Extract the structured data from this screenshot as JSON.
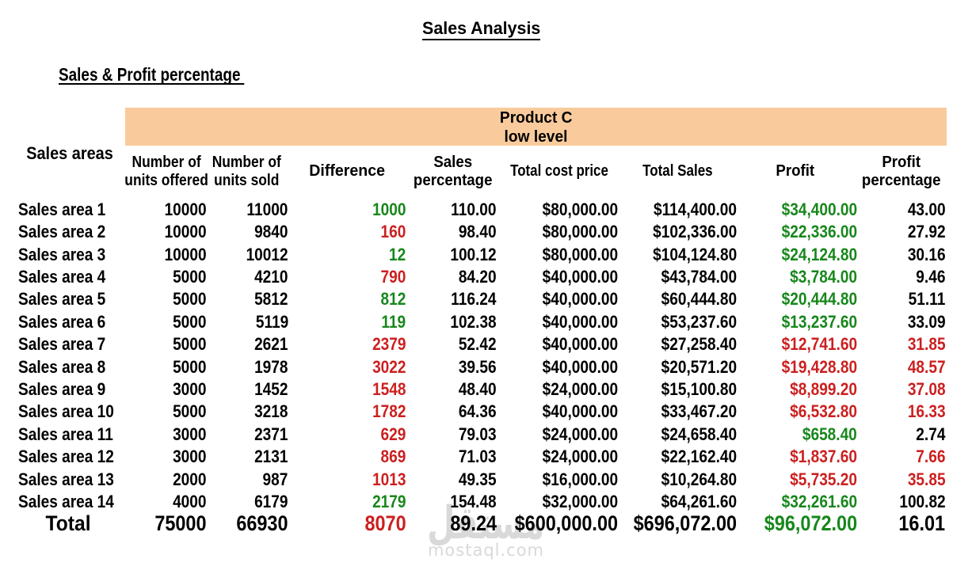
{
  "page": {
    "title": "Sales Analysis",
    "subtitle": "Sales & Profit percentage"
  },
  "band": {
    "line1": "Product C",
    "line2": "low level"
  },
  "area_header": "Sales areas",
  "column_headers": [
    {
      "lines": [
        "Number of",
        "units offered"
      ]
    },
    {
      "lines": [
        "Number of",
        "units sold"
      ]
    },
    {
      "lines": [
        "Difference"
      ]
    },
    {
      "lines": [
        "Sales",
        "percentage"
      ]
    },
    {
      "lines": [
        "Total cost price"
      ]
    },
    {
      "lines": [
        "Total Sales"
      ]
    },
    {
      "lines": [
        "Profit"
      ]
    },
    {
      "lines": [
        "Profit",
        "percentage"
      ]
    }
  ],
  "rows": [
    {
      "area": "Sales area 1",
      "offered": "10000",
      "sold": "11000",
      "difference": "1000",
      "difference_color": "green",
      "sales_percentage": "110.00",
      "total_cost": "$80,000.00",
      "total_sales": "$114,400.00",
      "profit": "$34,400.00",
      "profit_color": "green",
      "profit_percentage": "43.00",
      "profit_percentage_color": "black"
    },
    {
      "area": "Sales area 2",
      "offered": "10000",
      "sold": "9840",
      "difference": "160",
      "difference_color": "red",
      "sales_percentage": "98.40",
      "total_cost": "$80,000.00",
      "total_sales": "$102,336.00",
      "profit": "$22,336.00",
      "profit_color": "green",
      "profit_percentage": "27.92",
      "profit_percentage_color": "black"
    },
    {
      "area": "Sales area 3",
      "offered": "10000",
      "sold": "10012",
      "difference": "12",
      "difference_color": "green",
      "sales_percentage": "100.12",
      "total_cost": "$80,000.00",
      "total_sales": "$104,124.80",
      "profit": "$24,124.80",
      "profit_color": "green",
      "profit_percentage": "30.16",
      "profit_percentage_color": "black"
    },
    {
      "area": "Sales area 4",
      "offered": "5000",
      "sold": "4210",
      "difference": "790",
      "difference_color": "red",
      "sales_percentage": "84.20",
      "total_cost": "$40,000.00",
      "total_sales": "$43,784.00",
      "profit": "$3,784.00",
      "profit_color": "green",
      "profit_percentage": "9.46",
      "profit_percentage_color": "black"
    },
    {
      "area": "Sales area 5",
      "offered": "5000",
      "sold": "5812",
      "difference": "812",
      "difference_color": "green",
      "sales_percentage": "116.24",
      "total_cost": "$40,000.00",
      "total_sales": "$60,444.80",
      "profit": "$20,444.80",
      "profit_color": "green",
      "profit_percentage": "51.11",
      "profit_percentage_color": "black"
    },
    {
      "area": "Sales area 6",
      "offered": "5000",
      "sold": "5119",
      "difference": "119",
      "difference_color": "green",
      "sales_percentage": "102.38",
      "total_cost": "$40,000.00",
      "total_sales": "$53,237.60",
      "profit": "$13,237.60",
      "profit_color": "green",
      "profit_percentage": "33.09",
      "profit_percentage_color": "black"
    },
    {
      "area": "Sales area 7",
      "offered": "5000",
      "sold": "2621",
      "difference": "2379",
      "difference_color": "red",
      "sales_percentage": "52.42",
      "total_cost": "$40,000.00",
      "total_sales": "$27,258.40",
      "profit": "$12,741.60",
      "profit_color": "red",
      "profit_percentage": "31.85",
      "profit_percentage_color": "red"
    },
    {
      "area": "Sales area 8",
      "offered": "5000",
      "sold": "1978",
      "difference": "3022",
      "difference_color": "red",
      "sales_percentage": "39.56",
      "total_cost": "$40,000.00",
      "total_sales": "$20,571.20",
      "profit": "$19,428.80",
      "profit_color": "red",
      "profit_percentage": "48.57",
      "profit_percentage_color": "red"
    },
    {
      "area": "Sales area 9",
      "offered": "3000",
      "sold": "1452",
      "difference": "1548",
      "difference_color": "red",
      "sales_percentage": "48.40",
      "total_cost": "$24,000.00",
      "total_sales": "$15,100.80",
      "profit": "$8,899.20",
      "profit_color": "red",
      "profit_percentage": "37.08",
      "profit_percentage_color": "red"
    },
    {
      "area": "Sales area 10",
      "offered": "5000",
      "sold": "3218",
      "difference": "1782",
      "difference_color": "red",
      "sales_percentage": "64.36",
      "total_cost": "$40,000.00",
      "total_sales": "$33,467.20",
      "profit": "$6,532.80",
      "profit_color": "red",
      "profit_percentage": "16.33",
      "profit_percentage_color": "red"
    },
    {
      "area": "Sales area 11",
      "offered": "3000",
      "sold": "2371",
      "difference": "629",
      "difference_color": "red",
      "sales_percentage": "79.03",
      "total_cost": "$24,000.00",
      "total_sales": "$24,658.40",
      "profit": "$658.40",
      "profit_color": "green",
      "profit_percentage": "2.74",
      "profit_percentage_color": "black"
    },
    {
      "area": "Sales area 12",
      "offered": "3000",
      "sold": "2131",
      "difference": "869",
      "difference_color": "red",
      "sales_percentage": "71.03",
      "total_cost": "$24,000.00",
      "total_sales": "$22,162.40",
      "profit": "$1,837.60",
      "profit_color": "red",
      "profit_percentage": "7.66",
      "profit_percentage_color": "red"
    },
    {
      "area": "Sales area 13",
      "offered": "2000",
      "sold": "987",
      "difference": "1013",
      "difference_color": "red",
      "sales_percentage": "49.35",
      "total_cost": "$16,000.00",
      "total_sales": "$10,264.80",
      "profit": "$5,735.20",
      "profit_color": "red",
      "profit_percentage": "35.85",
      "profit_percentage_color": "red"
    },
    {
      "area": "Sales area 14",
      "offered": "4000",
      "sold": "6179",
      "difference": "2179",
      "difference_color": "green",
      "sales_percentage": "154.48",
      "total_cost": "$32,000.00",
      "total_sales": "$64,261.60",
      "profit": "$32,261.60",
      "profit_color": "green",
      "profit_percentage": "100.82",
      "profit_percentage_color": "black"
    }
  ],
  "total": {
    "area": "Total",
    "offered": "75000",
    "sold": "66930",
    "difference": "8070",
    "difference_color": "red",
    "sales_percentage": "89.24",
    "total_cost": "$600,000.00",
    "total_sales": "$696,072.00",
    "profit": "$96,072.00",
    "profit_color": "green",
    "profit_percentage": "16.01",
    "profit_percentage_color": "black"
  },
  "watermark": {
    "logo": "مستقل",
    "domain": "mostaql.com"
  },
  "colors": {
    "green": "#17871b",
    "red": "#cc1f1f",
    "black": "#000000",
    "band_bg": "#f9cb9c",
    "watermark": "#d9d9d9"
  }
}
